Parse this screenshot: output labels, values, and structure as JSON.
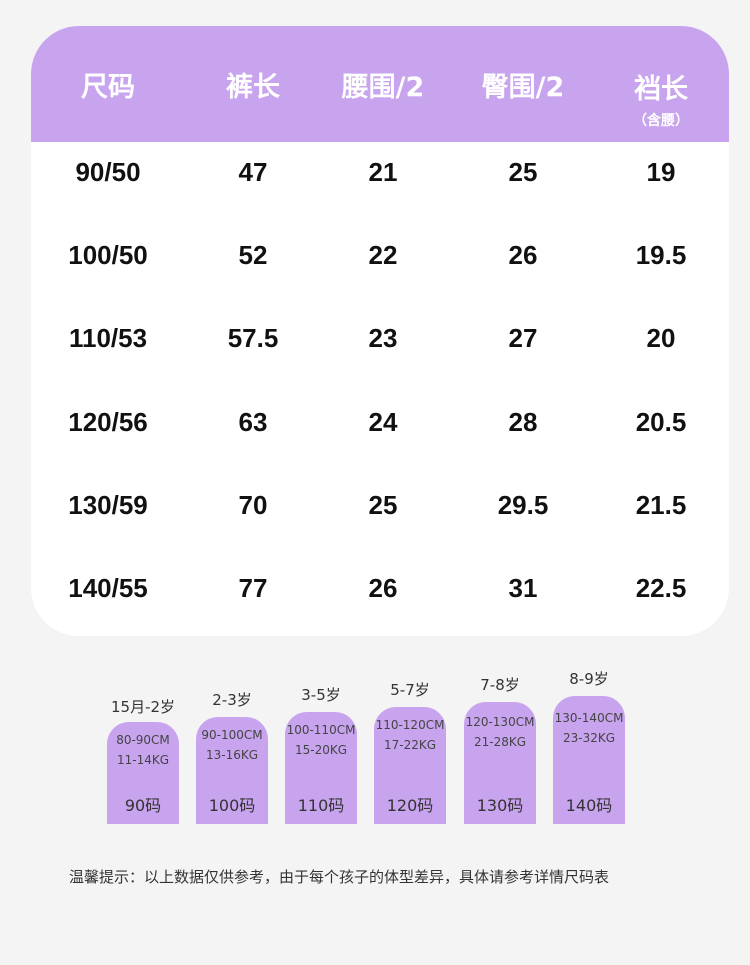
{
  "table": {
    "headers": [
      {
        "label": "尺码",
        "sub": ""
      },
      {
        "label": "裤长",
        "sub": ""
      },
      {
        "label": "腰围/2",
        "sub": ""
      },
      {
        "label": "臀围/2",
        "sub": ""
      },
      {
        "label": "裆长",
        "sub": "（含腰）"
      }
    ],
    "rows": [
      [
        "90/50",
        "47",
        "21",
        "25",
        "19"
      ],
      [
        "100/50",
        "52",
        "22",
        "26",
        "19.5"
      ],
      [
        "110/53",
        "57.5",
        "23",
        "27",
        "20"
      ],
      [
        "120/56",
        "63",
        "24",
        "28",
        "20.5"
      ],
      [
        "130/59",
        "70",
        "25",
        "29.5",
        "21.5"
      ],
      [
        "140/55",
        "77",
        "26",
        "31",
        "22.5"
      ]
    ]
  },
  "size_guide": [
    {
      "age": "15月-2岁",
      "height": "80-90CM",
      "weight": "11-14KG",
      "size": "90码"
    },
    {
      "age": "2-3岁",
      "height": "90-100CM",
      "weight": "13-16KG",
      "size": "100码"
    },
    {
      "age": "3-5岁",
      "height": "100-110CM",
      "weight": "15-20KG",
      "size": "110码"
    },
    {
      "age": "5-7岁",
      "height": "110-120CM",
      "weight": "17-22KG",
      "size": "120码"
    },
    {
      "age": "7-8岁",
      "height": "120-130CM",
      "weight": "21-28KG",
      "size": "130码"
    },
    {
      "age": "8-9岁",
      "height": "130-140CM",
      "weight": "23-32KG",
      "size": "140码"
    }
  ],
  "tip": "温馨提示：以上数据仅供参考，由于每个孩子的体型差异，具体请参考详情尺码表",
  "colors": {
    "accent": "#c8a4ee",
    "background": "#f4f4f4",
    "card": "#ffffff",
    "text": "#111111"
  }
}
